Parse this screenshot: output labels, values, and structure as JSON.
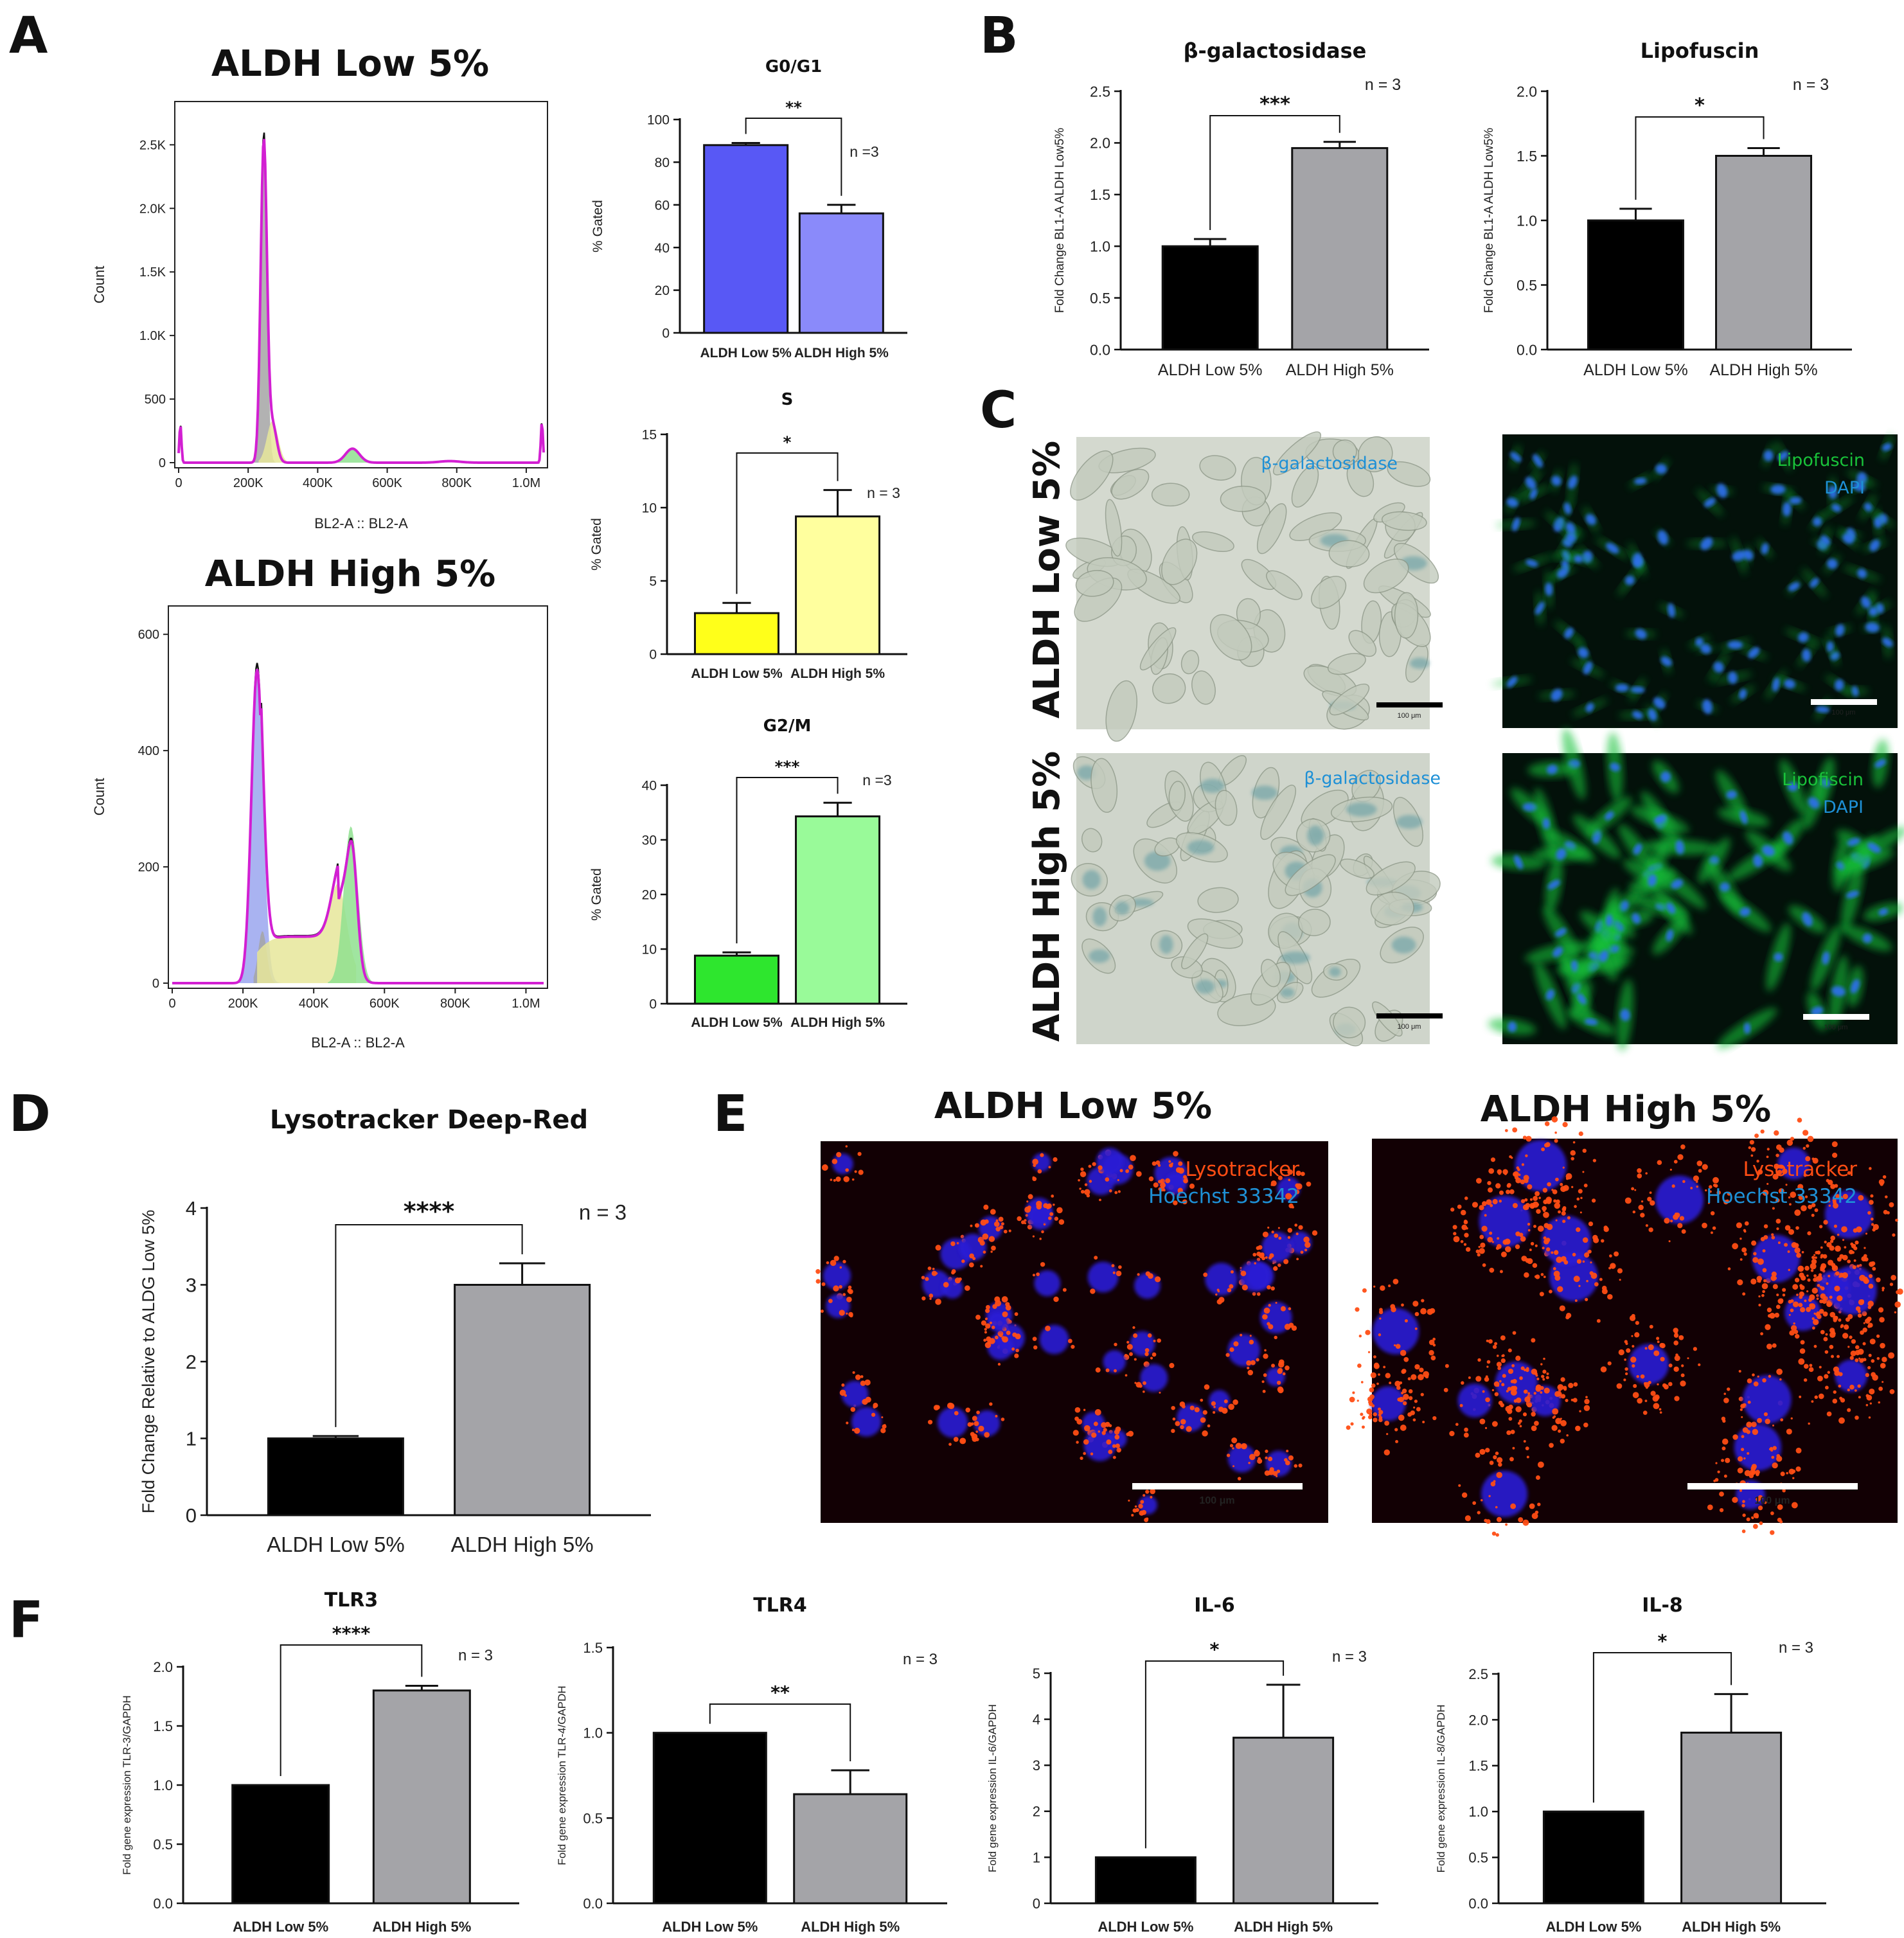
{
  "panels": {
    "a": "A",
    "b": "B",
    "c": "C",
    "d": "D",
    "e": "E",
    "f": "F"
  },
  "colors": {
    "hist_line": "#d21fd2",
    "hist_blue": "#9aa6ee",
    "hist_green": "#8fe08f",
    "hist_yellow": "#e6e69a",
    "hist_gray": "#a5a5a5",
    "g0_low": "#5858f5",
    "g0_high": "#8a8afa",
    "s_low": "#ffff1a",
    "s_high": "#ffff9e",
    "g2_low": "#2ee62e",
    "g2_high": "#99fa99",
    "black_bar": "#000000",
    "gray_bar": "#a4a4a8",
    "stain_blue": "#1e90d6",
    "stain_green": "#19c23a",
    "stain_orange": "#ff4d14",
    "tissue_bg": "#d4d9cf",
    "fluo_bg": "#03110a",
    "lyso_bg": "#120004"
  },
  "panelA": {
    "low_title": "ALDH Low 5%",
    "high_title": "ALDH High 5%",
    "hist_xlabel": "BL2-A :: BL2-A",
    "hist_ylabel": "Count",
    "hist_xticks": [
      "0",
      "200K",
      "400K",
      "600K",
      "800K",
      "1.0M"
    ],
    "low_yticks": [
      "0",
      "500",
      "1.0K",
      "1.5K",
      "2.0K",
      "2.5K"
    ],
    "high_yticks": [
      "0",
      "200",
      "400",
      "600"
    ]
  },
  "panelC": {
    "row_low": "ALDH Low 5%",
    "row_high": "ALDH High 5%",
    "bgal": "β-galactosidase",
    "lipo_low": "Lipofuscin",
    "lipo_high": "Lipofiscin",
    "dapi": "DAPI",
    "scale": "100 μm"
  },
  "panelE": {
    "low_title": "ALDH Low 5%",
    "high_title": "ALDH High 5%",
    "lyso": "Lysotracker",
    "hoechst": "Hoechst 33342",
    "scale": "100 μm"
  },
  "chart_data": [
    {
      "id": "g0g1",
      "type": "bar",
      "title": "G0/G1",
      "ylabel": "% Gated",
      "categories": [
        "ALDH Low 5%",
        "ALDH High 5%"
      ],
      "values": [
        88,
        56
      ],
      "errors": [
        1,
        4
      ],
      "ylim": [
        0,
        100
      ],
      "yticks": [
        "0",
        "20",
        "40",
        "60",
        "80",
        "100"
      ],
      "significance": "**",
      "n_label": "n =3"
    },
    {
      "id": "s_phase",
      "type": "bar",
      "title": "S",
      "ylabel": "% Gated",
      "categories": [
        "ALDH Low 5%",
        "ALDH High 5%"
      ],
      "values": [
        2.8,
        9.4
      ],
      "errors": [
        0.7,
        1.8
      ],
      "ylim": [
        0,
        15
      ],
      "yticks": [
        "0",
        "5",
        "10",
        "15"
      ],
      "significance": "*",
      "n_label": "n = 3"
    },
    {
      "id": "g2m",
      "type": "bar",
      "title": "G2/M",
      "ylabel": "% Gated",
      "categories": [
        "ALDH Low 5%",
        "ALDH High 5%"
      ],
      "values": [
        8.8,
        34.3
      ],
      "errors": [
        0.6,
        2.5
      ],
      "ylim": [
        0,
        40
      ],
      "yticks": [
        "0",
        "10",
        "20",
        "30",
        "40"
      ],
      "significance": "***",
      "n_label": "n =3"
    },
    {
      "id": "bgal",
      "type": "bar",
      "title": "β-galactosidase",
      "ylabel": "Fold Change BL1-A ALDH Low5%",
      "categories": [
        "ALDH Low 5%",
        "ALDH High 5%"
      ],
      "values": [
        1.0,
        1.95
      ],
      "errors": [
        0.07,
        0.06
      ],
      "ylim": [
        0,
        2.5
      ],
      "yticks": [
        "0.0",
        "0.5",
        "1.0",
        "1.5",
        "2.0",
        "2.5"
      ],
      "significance": "***",
      "n_label": "n = 3"
    },
    {
      "id": "lipofuscin",
      "type": "bar",
      "title": "Lipofuscin",
      "ylabel": "Fold Change BL1-A ALDH Low5%",
      "categories": [
        "ALDH Low 5%",
        "ALDH High 5%"
      ],
      "values": [
        1.0,
        1.5
      ],
      "errors": [
        0.09,
        0.06
      ],
      "ylim": [
        0,
        2.0
      ],
      "yticks": [
        "0.0",
        "0.5",
        "1.0",
        "1.5",
        "2.0"
      ],
      "significance": "*",
      "n_label": "n = 3"
    },
    {
      "id": "lysotracker",
      "type": "bar",
      "title": "Lysotracker Deep-Red",
      "ylabel": "Fold Change Relative to ALDG Low 5%",
      "categories": [
        "ALDH Low 5%",
        "ALDH High 5%"
      ],
      "values": [
        1.0,
        3.0
      ],
      "errors": [
        0.03,
        0.28
      ],
      "ylim": [
        0,
        4
      ],
      "yticks": [
        "0",
        "1",
        "2",
        "3",
        "4"
      ],
      "significance": "****",
      "n_label": "n = 3"
    },
    {
      "id": "tlr3",
      "type": "bar",
      "title": "TLR3",
      "ylabel": "Fold gene expression TLR-3/GAPDH",
      "categories": [
        "ALDH Low 5%",
        "ALDH High 5%"
      ],
      "values": [
        1.0,
        1.8
      ],
      "errors": [
        0,
        0.04
      ],
      "ylim": [
        0,
        2.0
      ],
      "yticks": [
        "0.0",
        "0.5",
        "1.0",
        "1.5",
        "2.0"
      ],
      "significance": "****",
      "n_label": "n = 3"
    },
    {
      "id": "tlr4",
      "type": "bar",
      "title": "TLR4",
      "ylabel": "Fold gene expression TLR-4/GAPDH",
      "categories": [
        "ALDH Low 5%",
        "ALDH High 5%"
      ],
      "values": [
        1.0,
        0.64
      ],
      "errors": [
        0,
        0.14
      ],
      "ylim": [
        0,
        1.5
      ],
      "yticks": [
        "0.0",
        "0.5",
        "1.0",
        "1.5"
      ],
      "significance": "**",
      "n_label": "n = 3"
    },
    {
      "id": "il6",
      "type": "bar",
      "title": "IL-6",
      "ylabel": "Fold gene expression IL-6/GAPDH",
      "categories": [
        "ALDH Low 5%",
        "ALDH High 5%"
      ],
      "values": [
        1.0,
        3.6
      ],
      "errors": [
        0,
        1.15
      ],
      "ylim": [
        0,
        5
      ],
      "yticks": [
        "0",
        "1",
        "2",
        "3",
        "4",
        "5"
      ],
      "significance": "*",
      "n_label": "n = 3"
    },
    {
      "id": "il8",
      "type": "bar",
      "title": "IL-8",
      "ylabel": "Fold gene expression IL-8/GAPDH",
      "categories": [
        "ALDH Low 5%",
        "ALDH High 5%"
      ],
      "values": [
        1.0,
        1.86
      ],
      "errors": [
        0,
        0.42
      ],
      "ylim": [
        0,
        2.5
      ],
      "yticks": [
        "0.0",
        "0.5",
        "1.0",
        "1.5",
        "2.0",
        "2.5"
      ],
      "significance": "*",
      "n_label": "n = 3"
    }
  ]
}
